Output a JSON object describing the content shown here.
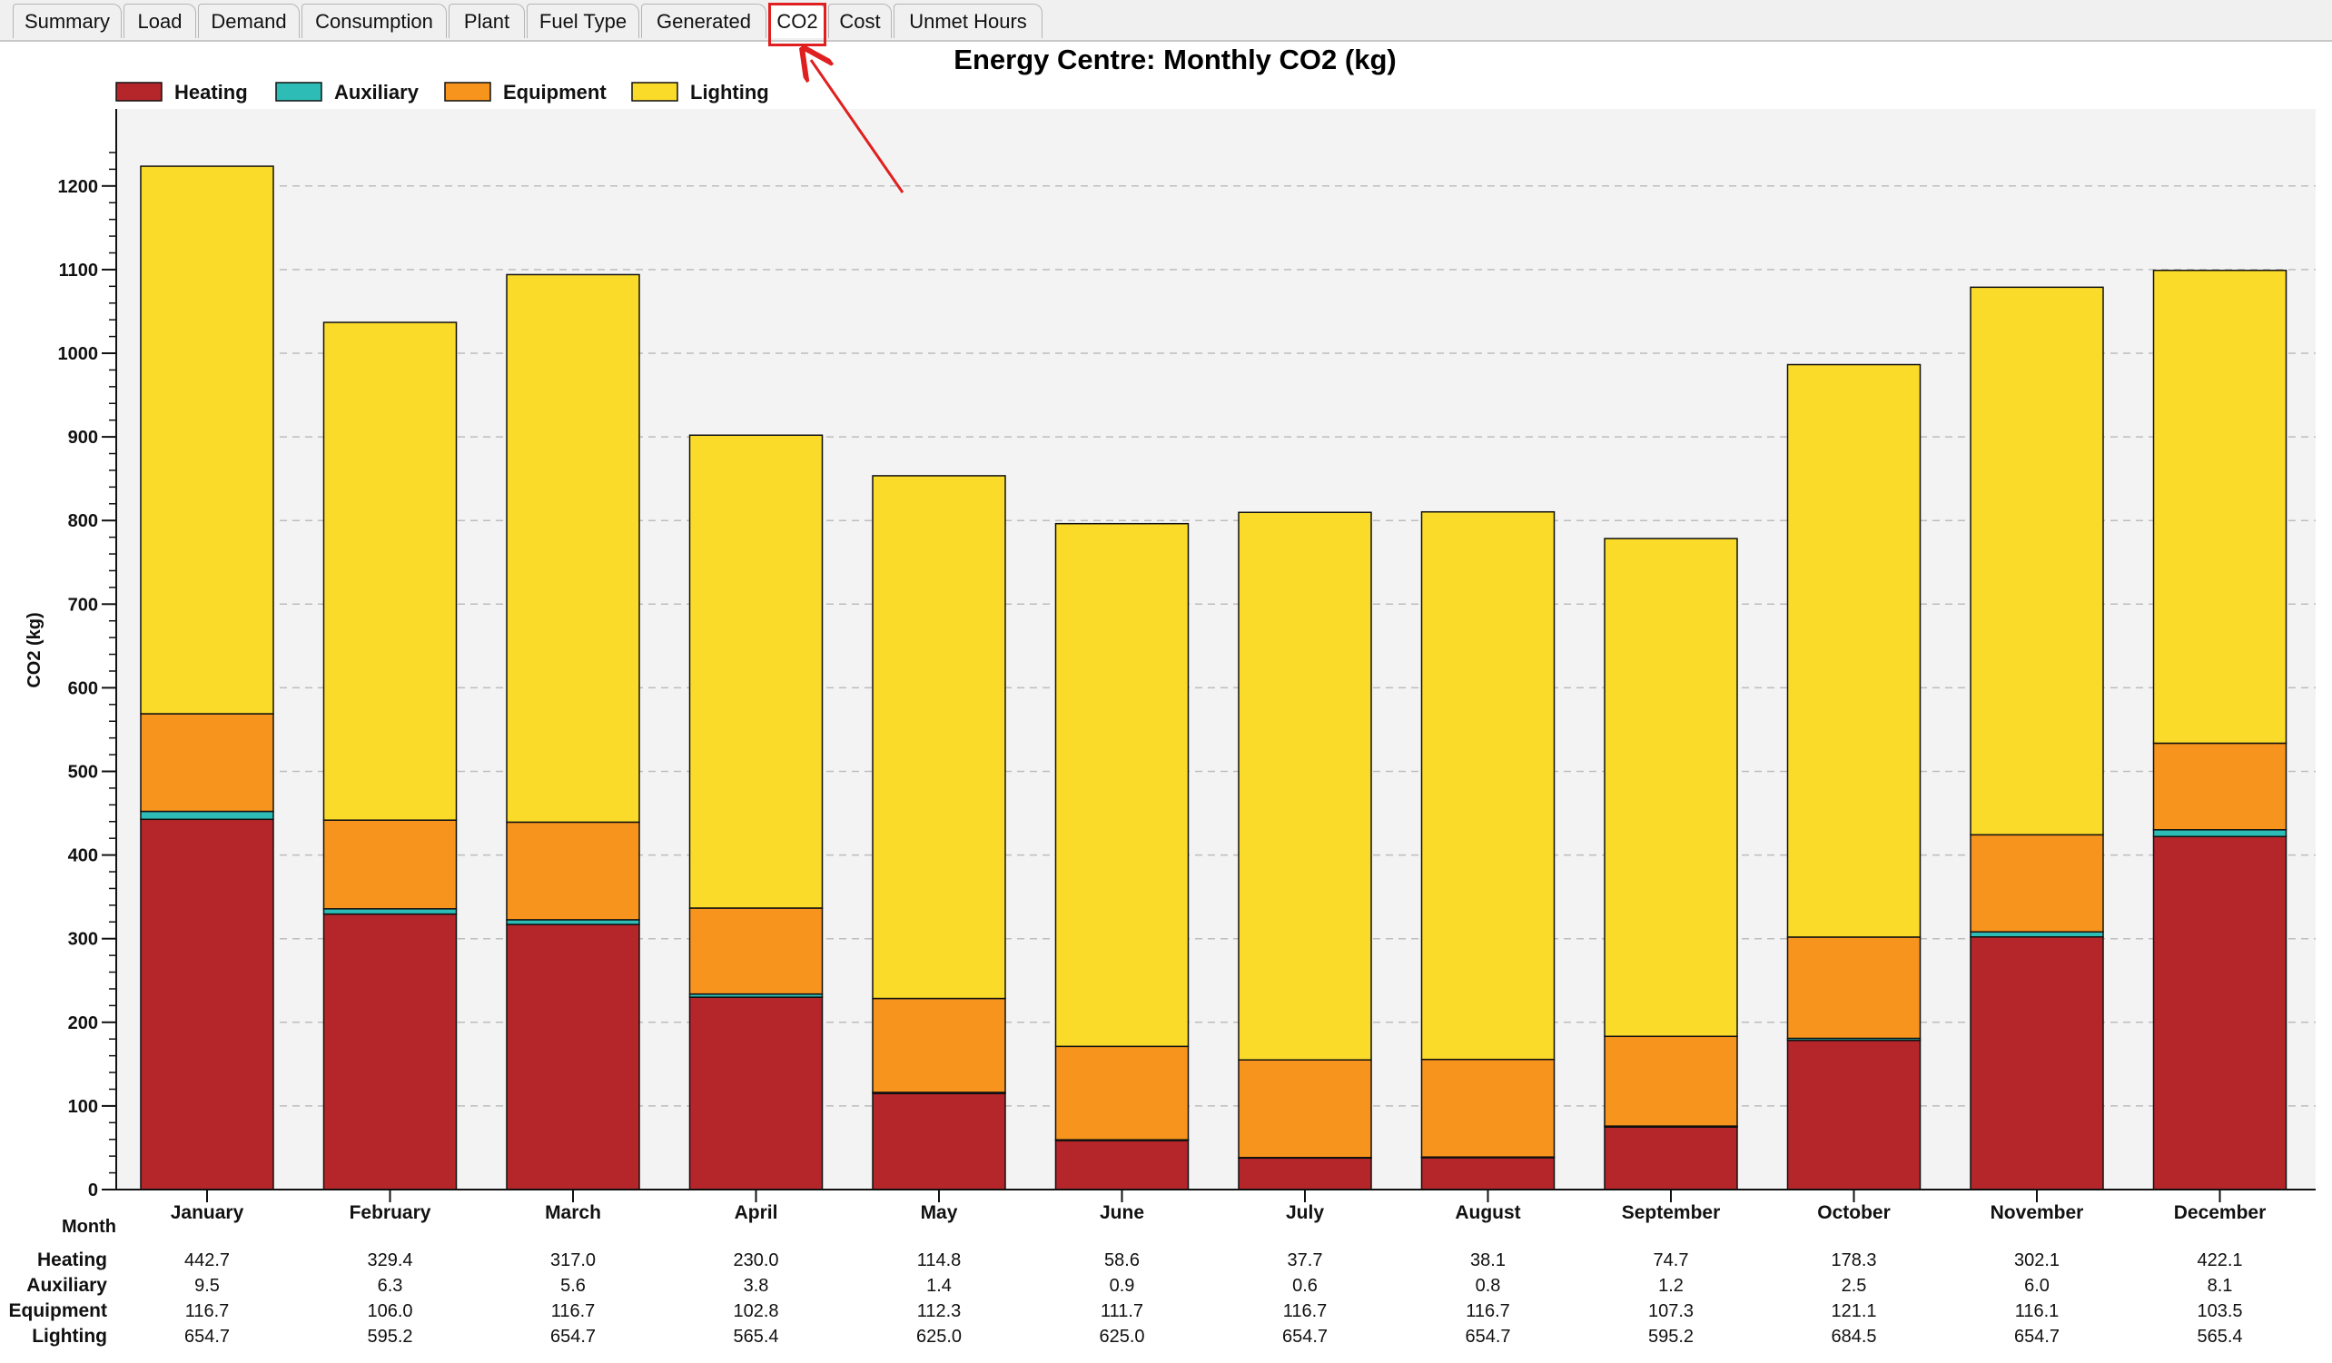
{
  "tabs": [
    {
      "label": "Summary",
      "active": false
    },
    {
      "label": "Load",
      "active": false
    },
    {
      "label": "Demand",
      "active": false
    },
    {
      "label": "Consumption",
      "active": false
    },
    {
      "label": "Plant",
      "active": false
    },
    {
      "label": "Fuel Type",
      "active": false
    },
    {
      "label": "Generated",
      "active": false
    },
    {
      "label": "CO2",
      "active": true
    },
    {
      "label": "Cost",
      "active": false
    },
    {
      "label": "Unmet Hours",
      "active": false
    }
  ],
  "chart_data": {
    "type": "bar",
    "stacked": true,
    "title": "Energy Centre: Monthly CO2 (kg)",
    "xlabel": "Month",
    "ylabel": "CO2 (kg)",
    "ylim": [
      0,
      1250
    ],
    "yticks": [
      0,
      100,
      200,
      300,
      400,
      500,
      600,
      700,
      800,
      900,
      1000,
      1100,
      1200
    ],
    "grid": true,
    "legend_position": "top-left",
    "categories": [
      "January",
      "February",
      "March",
      "April",
      "May",
      "June",
      "July",
      "August",
      "September",
      "October",
      "November",
      "December"
    ],
    "series": [
      {
        "name": "Heating",
        "color": "#b5262a",
        "values": [
          442.7,
          329.4,
          317.0,
          230.0,
          114.8,
          58.6,
          37.7,
          38.1,
          74.7,
          178.3,
          302.1,
          422.1
        ]
      },
      {
        "name": "Auxiliary",
        "color": "#2dbdb6",
        "values": [
          9.5,
          6.3,
          5.6,
          3.8,
          1.4,
          0.9,
          0.6,
          0.8,
          1.2,
          2.5,
          6.0,
          8.1
        ]
      },
      {
        "name": "Equipment",
        "color": "#f7941d",
        "values": [
          116.7,
          106.0,
          116.7,
          102.8,
          112.3,
          111.7,
          116.7,
          116.7,
          107.3,
          121.1,
          116.1,
          103.5
        ]
      },
      {
        "name": "Lighting",
        "color": "#fbdb2a",
        "values": [
          654.7,
          595.2,
          654.7,
          565.4,
          625.0,
          625.0,
          654.7,
          654.7,
          595.2,
          684.5,
          654.7,
          565.4
        ]
      }
    ],
    "table": {
      "rows": [
        {
          "label": "Heating",
          "values": [
            "442.7",
            "329.4",
            "317.0",
            "230.0",
            "114.8",
            "58.6",
            "37.7",
            "38.1",
            "74.7",
            "178.3",
            "302.1",
            "422.1"
          ]
        },
        {
          "label": "Auxiliary",
          "values": [
            "9.5",
            "6.3",
            "5.6",
            "3.8",
            "1.4",
            "0.9",
            "0.6",
            "0.8",
            "1.2",
            "2.5",
            "6.0",
            "8.1"
          ]
        },
        {
          "label": "Equipment",
          "values": [
            "116.7",
            "106.0",
            "116.7",
            "102.8",
            "112.3",
            "111.7",
            "116.7",
            "116.7",
            "107.3",
            "121.1",
            "116.1",
            "103.5"
          ]
        },
        {
          "label": "Lighting",
          "values": [
            "654.7",
            "595.2",
            "654.7",
            "565.4",
            "625.0",
            "625.0",
            "654.7",
            "654.7",
            "595.2",
            "684.5",
            "654.7",
            "565.4"
          ]
        }
      ]
    }
  }
}
